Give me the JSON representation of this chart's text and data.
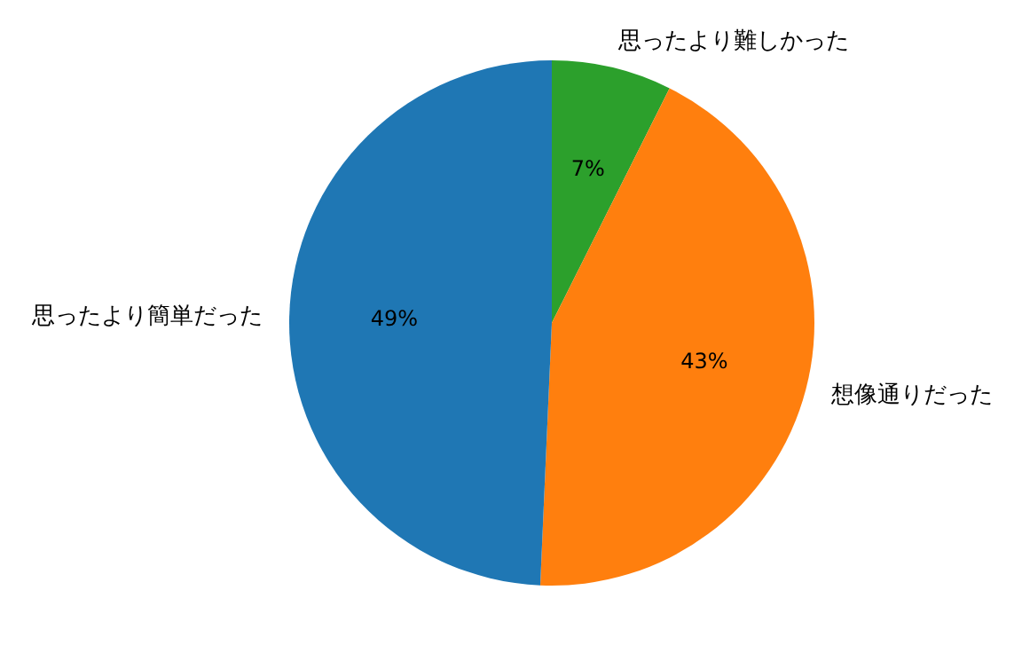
{
  "chart_data": {
    "type": "pie",
    "categories": [
      "思ったより難しかった",
      "想像通りだった",
      "思ったより簡単だった"
    ],
    "values": [
      7.4,
      43.3,
      49.3
    ],
    "colors": [
      "#2ca02c",
      "#ff7f0e",
      "#1f77b4"
    ],
    "value_labels": [
      "7%",
      "43%",
      "49%"
    ],
    "legend": false
  }
}
